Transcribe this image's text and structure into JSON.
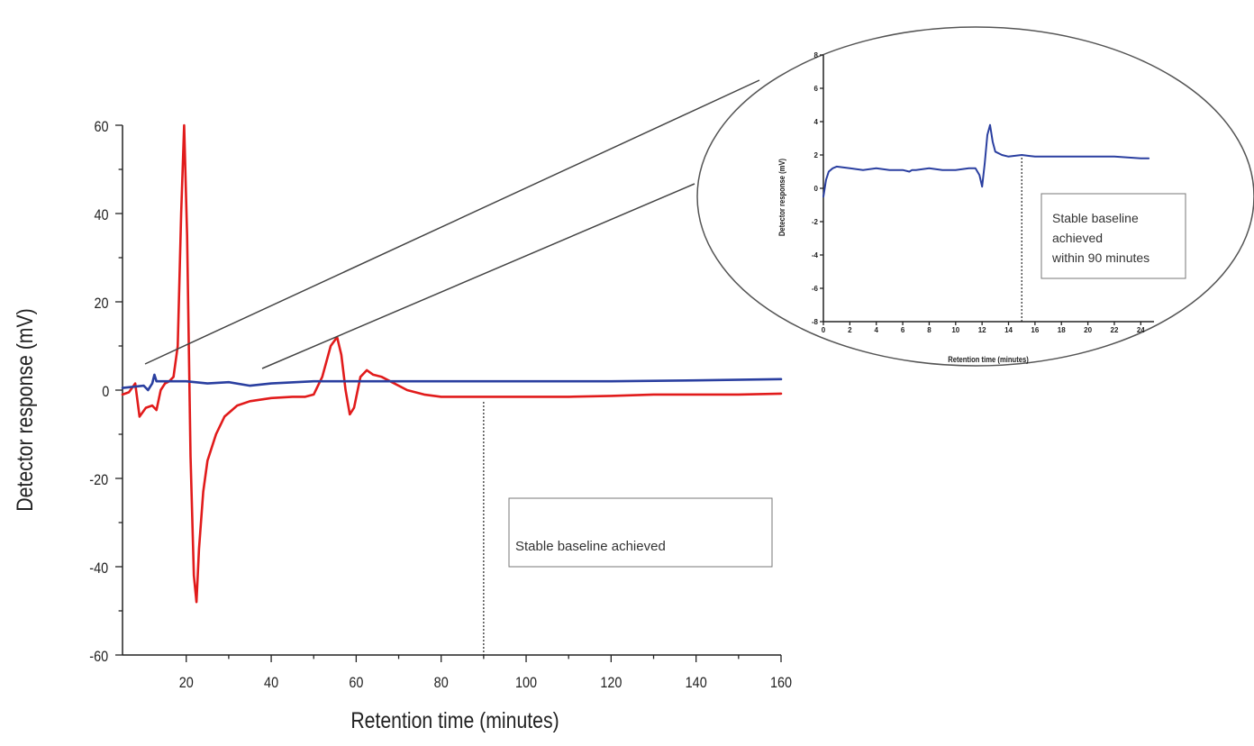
{
  "chart_data": [
    {
      "type": "line",
      "xlabel": "Retention time (minutes)",
      "ylabel": "Detector response (mV)",
      "xlim": [
        5,
        160
      ],
      "ylim": [
        -60,
        60
      ],
      "xticks": [
        "20",
        "40",
        "60",
        "80",
        "100",
        "120",
        "140",
        "160"
      ],
      "yticks": [
        "60",
        "40",
        "20",
        "0",
        "-20",
        "-40",
        "-60"
      ],
      "grid": false,
      "series": [
        {
          "color": "#e11b1b",
          "x": [
            5,
            6.5,
            8,
            9,
            10.5,
            12,
            13,
            14,
            15,
            16,
            17,
            18,
            18.8,
            19.5,
            20.2,
            21,
            21.8,
            22.4,
            23,
            24,
            25,
            27,
            29,
            32,
            35,
            40,
            45,
            48,
            50,
            52,
            54,
            55.5,
            56.5,
            57.5,
            58.5,
            59.5,
            61,
            62.5,
            64,
            66,
            68,
            72,
            76,
            80,
            84,
            90,
            100,
            110,
            120,
            130,
            140,
            150,
            160
          ],
          "y": [
            -1,
            -0.5,
            1.5,
            -6,
            -4,
            -3.5,
            -4.5,
            0,
            1.5,
            2,
            3,
            10,
            40,
            60,
            35,
            -15,
            -42,
            -48,
            -36,
            -23,
            -16,
            -10,
            -6,
            -3.5,
            -2.5,
            -1.8,
            -1.5,
            -1.5,
            -1,
            3,
            10,
            12,
            8,
            0,
            -5.5,
            -4,
            3,
            4.5,
            3.5,
            3,
            2,
            0,
            -1,
            -1.5,
            -1.5,
            -1.5,
            -1.5,
            -1.5,
            -1.3,
            -1,
            -1,
            -1,
            -0.8
          ]
        },
        {
          "color": "#2a3fa0",
          "x": [
            5,
            10,
            11,
            12,
            12.5,
            13,
            20,
            25,
            30,
            35,
            40,
            50,
            60,
            70,
            80,
            100,
            120,
            140,
            160
          ],
          "y": [
            0.5,
            1,
            0,
            1.5,
            3.5,
            2,
            2,
            1.5,
            1.8,
            1,
            1.5,
            2,
            2,
            2,
            2,
            2,
            2,
            2.2,
            2.5
          ]
        }
      ],
      "annotations": [
        {
          "text": "Stable baseline achieved",
          "x": 90
        }
      ]
    },
    {
      "type": "line",
      "xlabel": "Retention time (minutes)",
      "ylabel": "Detector response (mV)",
      "xlim": [
        0,
        25
      ],
      "ylim": [
        -8,
        8
      ],
      "xticks": [
        "0",
        "2",
        "4",
        "6",
        "8",
        "10",
        "12",
        "14",
        "16",
        "18",
        "20",
        "22",
        "24"
      ],
      "yticks": [
        "8",
        "6",
        "4",
        "2",
        "0",
        "-2",
        "-4",
        "-6",
        "-8"
      ],
      "grid": false,
      "series": [
        {
          "color": "#2a3fa0",
          "x": [
            0,
            0.2,
            0.4,
            0.7,
            1,
            2,
            3,
            4,
            5,
            6,
            6.5,
            6.7,
            7,
            8,
            9,
            10,
            11,
            11.5,
            11.8,
            12,
            12.2,
            12.4,
            12.6,
            12.8,
            13,
            13.5,
            14,
            15,
            16,
            18,
            20,
            22,
            24,
            24.6
          ],
          "y": [
            -0.5,
            0.5,
            1,
            1.2,
            1.3,
            1.2,
            1.1,
            1.2,
            1.1,
            1.1,
            1.0,
            1.1,
            1.1,
            1.2,
            1.1,
            1.1,
            1.2,
            1.2,
            0.8,
            0.1,
            1.5,
            3.2,
            3.8,
            2.8,
            2.2,
            2.0,
            1.9,
            2.0,
            1.9,
            1.9,
            1.9,
            1.9,
            1.8,
            1.8
          ]
        }
      ],
      "annotations": [
        {
          "text": [
            "Stable baseline",
            "achieved",
            "within 90 minutes"
          ],
          "x": 15
        }
      ]
    }
  ]
}
